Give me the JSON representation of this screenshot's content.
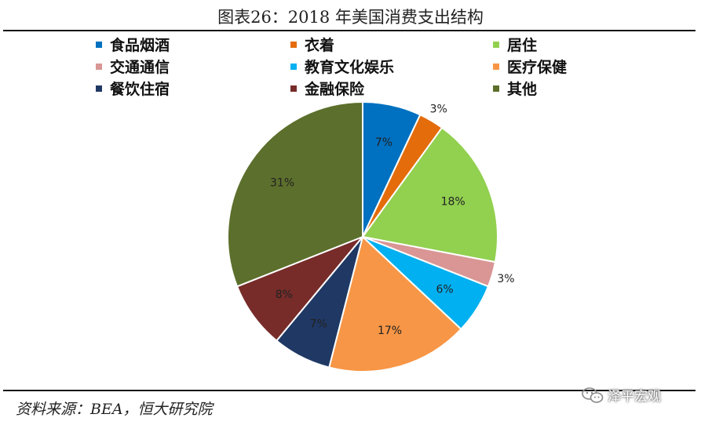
{
  "title": "图表26：2018 年美国消费支出结构",
  "source": "资料来源：BEA，恒大研究院",
  "watermark": "泽平宏观",
  "watermark_icon": "wechat-icon",
  "chart_data": {
    "type": "pie",
    "title": "图表26：2018 年美国消费支出结构",
    "legend_position": "top",
    "categories": [
      "食品烟酒",
      "衣着",
      "居住",
      "交通通信",
      "教育文化娱乐",
      "医疗保健",
      "餐饮住宿",
      "金融保险",
      "其他"
    ],
    "values": [
      7,
      3,
      18,
      3,
      6,
      17,
      7,
      8,
      31
    ],
    "labels": [
      "7%",
      "3%",
      "18%",
      "3%",
      "6%",
      "17%",
      "7%",
      "8%",
      "31%"
    ],
    "colors": [
      "#0070C0",
      "#E46C0A",
      "#92D050",
      "#D99694",
      "#00B0F0",
      "#F79646",
      "#1F3864",
      "#772C2A",
      "#5C6F2C"
    ]
  }
}
